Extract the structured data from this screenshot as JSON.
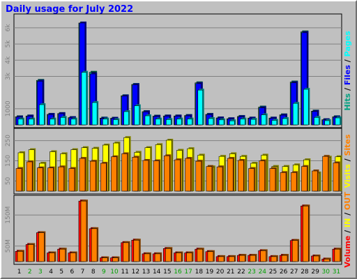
{
  "title": "Daily usage for July 2022",
  "colors": {
    "hits": "#00a080",
    "files": "#0000ff",
    "pages": "#00ffff",
    "sites": "#ff8000",
    "visits": "#ffff00",
    "volume": "#ff0000",
    "in": "#ffff00",
    "out": "#ff8000",
    "weekday": "#000000",
    "weekend": "#00a000",
    "slash": "#000000"
  },
  "chart_data": [
    {
      "type": "bar",
      "name": "hits-files-pages",
      "categories": [
        "1",
        "2",
        "3",
        "4",
        "5",
        "6",
        "7",
        "8",
        "9",
        "10",
        "11",
        "12",
        "13",
        "14",
        "15",
        "16",
        "17",
        "18",
        "19",
        "20",
        "21",
        "22",
        "23",
        "24",
        "25",
        "26",
        "27",
        "28",
        "29",
        "30",
        "31"
      ],
      "weekend_days": [
        "2",
        "3",
        "9",
        "10",
        "16",
        "17",
        "23",
        "24",
        "30",
        "31"
      ],
      "y_ticks": [
        {
          "value": 1000,
          "label": "1000"
        },
        {
          "value": 3000,
          "label": "3k"
        },
        {
          "value": 4000,
          "label": "4k"
        },
        {
          "value": 5000,
          "label": "5k"
        },
        {
          "value": 6000,
          "label": "6k"
        }
      ],
      "ylim": [
        0,
        6600
      ],
      "side_label": [
        {
          "text": "Hits",
          "color": "#00a080"
        },
        {
          "text": " / ",
          "color": "#000000"
        },
        {
          "text": "Files",
          "color": "#0000ff"
        },
        {
          "text": " / ",
          "color": "#000000"
        },
        {
          "text": "Pages",
          "color": "#00ffff"
        }
      ],
      "series": [
        {
          "name": "Hits",
          "values": [
            500,
            550,
            2750,
            650,
            700,
            450,
            6300,
            3250,
            420,
            410,
            1800,
            2500,
            820,
            540,
            550,
            550,
            580,
            2600,
            650,
            430,
            380,
            520,
            420,
            1100,
            420,
            620,
            2650,
            5750,
            850,
            320,
            500
          ]
        },
        {
          "name": "Files",
          "values": [
            480,
            540,
            2700,
            640,
            690,
            440,
            6300,
            3150,
            400,
            400,
            1780,
            2480,
            800,
            520,
            540,
            540,
            560,
            2550,
            630,
            420,
            370,
            500,
            410,
            1050,
            410,
            600,
            2600,
            5700,
            830,
            310,
            480
          ]
        },
        {
          "name": "Pages",
          "values": [
            360,
            360,
            1250,
            360,
            460,
            360,
            3250,
            1380,
            360,
            320,
            820,
            1180,
            560,
            360,
            330,
            360,
            360,
            2150,
            390,
            310,
            250,
            360,
            340,
            620,
            280,
            390,
            1330,
            2200,
            460,
            260,
            430
          ]
        }
      ]
    },
    {
      "type": "bar",
      "name": "visits-sites",
      "categories": [
        "1",
        "2",
        "3",
        "4",
        "5",
        "6",
        "7",
        "8",
        "9",
        "10",
        "11",
        "12",
        "13",
        "14",
        "15",
        "16",
        "17",
        "18",
        "19",
        "20",
        "21",
        "22",
        "23",
        "24",
        "25",
        "26",
        "27",
        "28",
        "29",
        "30",
        "31"
      ],
      "y_ticks": [
        {
          "value": 50,
          "label": "50"
        },
        {
          "value": 150,
          "label": "150"
        },
        {
          "value": 250,
          "label": "250"
        }
      ],
      "ylim": [
        0,
        290
      ],
      "side_label": [
        {
          "text": "Visits",
          "color": "#ffff00"
        },
        {
          "text": " / ",
          "color": "#000000"
        },
        {
          "text": "Sites",
          "color": "#ff8000"
        }
      ],
      "series": [
        {
          "name": "Visits",
          "values": [
            190,
            205,
            138,
            195,
            185,
            205,
            215,
            212,
            228,
            238,
            265,
            192,
            215,
            230,
            252,
            202,
            210,
            178,
            120,
            172,
            185,
            172,
            138,
            178,
            122,
            122,
            130,
            155,
            90,
            168,
            170
          ]
        },
        {
          "name": "Sites",
          "values": [
            112,
            145,
            115,
            115,
            120,
            112,
            162,
            148,
            138,
            170,
            185,
            168,
            152,
            150,
            175,
            155,
            162,
            148,
            122,
            120,
            162,
            152,
            112,
            150,
            112,
            92,
            92,
            122,
            100,
            172,
            140
          ]
        }
      ]
    },
    {
      "type": "bar",
      "name": "volume",
      "categories": [
        "1",
        "2",
        "3",
        "4",
        "5",
        "6",
        "7",
        "8",
        "9",
        "10",
        "11",
        "12",
        "13",
        "14",
        "15",
        "16",
        "17",
        "18",
        "19",
        "20",
        "21",
        "22",
        "23",
        "24",
        "25",
        "26",
        "27",
        "28",
        "29",
        "30",
        "31"
      ],
      "y_ticks": [
        {
          "value": 50,
          "label": "50M"
        },
        {
          "value": 150,
          "label": "150M"
        }
      ],
      "ylim": [
        0,
        200
      ],
      "side_label": [
        {
          "text": "Volume",
          "color": "#ff0000"
        },
        {
          "text": " / ",
          "color": "#000000"
        },
        {
          "text": "IN",
          "color": "#ffff00"
        },
        {
          "text": " / ",
          "color": "#000000"
        },
        {
          "text": "OUT",
          "color": "#ff8000"
        }
      ],
      "series": [
        {
          "name": "Volume",
          "values": [
            33,
            55,
            93,
            28,
            40,
            28,
            195,
            106,
            12,
            12,
            61,
            69,
            25,
            25,
            42,
            28,
            28,
            40,
            32,
            16,
            16,
            20,
            20,
            35,
            16,
            20,
            68,
            179,
            18,
            8,
            40
          ]
        },
        {
          "name": "OUT",
          "values": [
            33,
            55,
            93,
            28,
            40,
            28,
            195,
            106,
            12,
            12,
            61,
            69,
            25,
            25,
            42,
            28,
            28,
            40,
            32,
            16,
            16,
            20,
            20,
            35,
            16,
            20,
            68,
            179,
            18,
            8,
            40
          ]
        }
      ]
    }
  ]
}
